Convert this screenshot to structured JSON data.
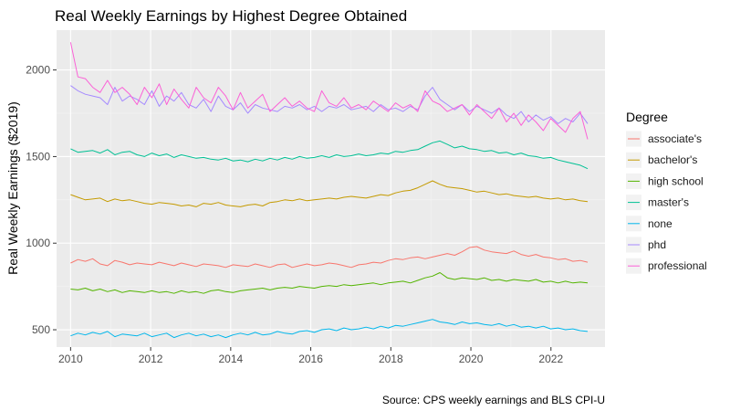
{
  "chart_data": {
    "type": "line",
    "title": "Real Weekly Earnings by Highest Degree Obtained",
    "xlabel": "",
    "ylabel": "Real Weekly Earnings ($2019)",
    "caption": "Source: CPS weekly earnings and BLS CPI-U",
    "xlim": [
      2009.65,
      2023.35
    ],
    "ylim": [
      400,
      2230
    ],
    "x_ticks": [
      2010,
      2012,
      2014,
      2016,
      2018,
      2020,
      2022
    ],
    "x_tick_labels": [
      "2010",
      "2012",
      "2014",
      "2016",
      "2018",
      "2020",
      "2022"
    ],
    "y_ticks": [
      500,
      1000,
      1500,
      2000
    ],
    "y_tick_labels": [
      "500",
      "1000",
      "1500",
      "2000"
    ],
    "grid": true,
    "legend": {
      "title": "Degree",
      "position": "right"
    },
    "x_start": 2010.0,
    "x_end": 2022.917,
    "series": [
      {
        "name": "associate's",
        "color": "#F8766D",
        "values": [
          885,
          905,
          895,
          910,
          880,
          870,
          900,
          890,
          875,
          885,
          880,
          875,
          890,
          880,
          870,
          885,
          875,
          865,
          880,
          875,
          870,
          860,
          875,
          870,
          865,
          880,
          870,
          860,
          875,
          880,
          860,
          870,
          880,
          870,
          875,
          885,
          880,
          870,
          860,
          875,
          880,
          890,
          885,
          900,
          910,
          905,
          915,
          920,
          910,
          920,
          930,
          940,
          930,
          950,
          975,
          980,
          960,
          950,
          945,
          940,
          955,
          935,
          925,
          935,
          920,
          915,
          905,
          910,
          895,
          900,
          890
        ]
      },
      {
        "name": "bachelor's",
        "color": "#C49A00",
        "values": [
          1280,
          1265,
          1250,
          1255,
          1260,
          1240,
          1255,
          1245,
          1250,
          1240,
          1230,
          1225,
          1235,
          1230,
          1225,
          1215,
          1220,
          1210,
          1230,
          1225,
          1235,
          1220,
          1215,
          1210,
          1220,
          1225,
          1215,
          1235,
          1240,
          1250,
          1245,
          1255,
          1245,
          1250,
          1255,
          1260,
          1255,
          1265,
          1270,
          1265,
          1260,
          1270,
          1280,
          1275,
          1290,
          1300,
          1305,
          1320,
          1340,
          1360,
          1340,
          1325,
          1320,
          1315,
          1305,
          1295,
          1300,
          1290,
          1280,
          1285,
          1275,
          1270,
          1265,
          1270,
          1260,
          1255,
          1260,
          1250,
          1255,
          1245,
          1240
        ]
      },
      {
        "name": "high school",
        "color": "#53B400",
        "values": [
          735,
          730,
          740,
          725,
          735,
          720,
          730,
          715,
          725,
          720,
          715,
          725,
          715,
          720,
          710,
          725,
          715,
          720,
          710,
          725,
          730,
          720,
          715,
          725,
          730,
          735,
          740,
          730,
          740,
          745,
          740,
          750,
          745,
          740,
          750,
          755,
          750,
          760,
          755,
          760,
          765,
          770,
          760,
          770,
          775,
          780,
          770,
          785,
          800,
          810,
          830,
          800,
          790,
          800,
          795,
          790,
          800,
          785,
          790,
          780,
          790,
          785,
          780,
          790,
          775,
          780,
          770,
          780,
          770,
          775,
          770
        ]
      },
      {
        "name": "master's",
        "color": "#00C094",
        "values": [
          1545,
          1525,
          1530,
          1535,
          1520,
          1540,
          1510,
          1525,
          1530,
          1510,
          1500,
          1520,
          1505,
          1515,
          1495,
          1510,
          1500,
          1490,
          1495,
          1485,
          1480,
          1490,
          1475,
          1480,
          1470,
          1485,
          1475,
          1490,
          1480,
          1495,
          1485,
          1500,
          1490,
          1495,
          1505,
          1495,
          1510,
          1500,
          1505,
          1515,
          1505,
          1510,
          1520,
          1515,
          1530,
          1525,
          1535,
          1540,
          1560,
          1580,
          1590,
          1570,
          1550,
          1560,
          1545,
          1540,
          1530,
          1535,
          1520,
          1525,
          1510,
          1520,
          1505,
          1500,
          1490,
          1495,
          1480,
          1470,
          1460,
          1450,
          1430
        ]
      },
      {
        "name": "none",
        "color": "#00B6EB",
        "values": [
          465,
          480,
          470,
          485,
          475,
          490,
          460,
          475,
          470,
          465,
          480,
          460,
          470,
          480,
          455,
          470,
          480,
          465,
          475,
          460,
          470,
          455,
          470,
          480,
          470,
          485,
          470,
          475,
          490,
          480,
          475,
          490,
          495,
          485,
          500,
          505,
          495,
          510,
          500,
          505,
          515,
          505,
          520,
          510,
          525,
          520,
          530,
          540,
          550,
          560,
          545,
          540,
          530,
          545,
          535,
          540,
          530,
          525,
          535,
          520,
          530,
          515,
          520,
          510,
          520,
          505,
          510,
          500,
          505,
          495,
          490
        ]
      },
      {
        "name": "phd",
        "color": "#A58AFF",
        "values": [
          1910,
          1880,
          1860,
          1850,
          1840,
          1800,
          1900,
          1820,
          1850,
          1830,
          1800,
          1880,
          1790,
          1850,
          1820,
          1870,
          1800,
          1780,
          1830,
          1760,
          1850,
          1790,
          1770,
          1810,
          1750,
          1800,
          1780,
          1770,
          1760,
          1790,
          1780,
          1800,
          1770,
          1790,
          1760,
          1790,
          1780,
          1800,
          1770,
          1780,
          1790,
          1760,
          1800,
          1770,
          1780,
          1760,
          1790,
          1770,
          1850,
          1900,
          1830,
          1800,
          1770,
          1800,
          1760,
          1790,
          1770,
          1750,
          1780,
          1740,
          1720,
          1760,
          1700,
          1740,
          1710,
          1730,
          1690,
          1720,
          1700,
          1750,
          1690
        ]
      },
      {
        "name": "professional",
        "color": "#FB61D7",
        "values": [
          2160,
          1960,
          1950,
          1900,
          1870,
          1940,
          1870,
          1900,
          1860,
          1800,
          1900,
          1840,
          1920,
          1800,
          1890,
          1830,
          1780,
          1900,
          1840,
          1810,
          1900,
          1850,
          1770,
          1870,
          1780,
          1820,
          1860,
          1760,
          1800,
          1840,
          1790,
          1820,
          1780,
          1760,
          1880,
          1810,
          1790,
          1840,
          1780,
          1800,
          1770,
          1820,
          1790,
          1760,
          1810,
          1780,
          1800,
          1760,
          1880,
          1820,
          1800,
          1760,
          1780,
          1800,
          1740,
          1800,
          1760,
          1720,
          1780,
          1700,
          1750,
          1680,
          1740,
          1700,
          1650,
          1720,
          1680,
          1640,
          1720,
          1760,
          1600
        ]
      }
    ]
  }
}
